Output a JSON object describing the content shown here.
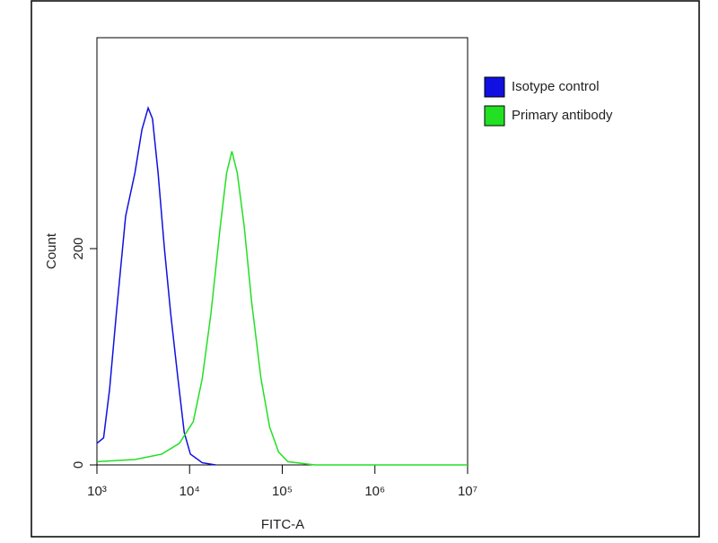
{
  "chart_data": {
    "type": "line",
    "x_label": "FITC-A",
    "y_label": "Count",
    "xlog": true,
    "xlim": [
      1000,
      10000000
    ],
    "xticks": [
      {
        "value": 1000,
        "label": "10³"
      },
      {
        "value": 10000,
        "label": "10⁴"
      },
      {
        "value": 100000,
        "label": "10⁵"
      },
      {
        "value": 1000000,
        "label": "10⁶"
      },
      {
        "value": 10000000,
        "label": "10⁷"
      }
    ],
    "ylim": [
      0,
      395
    ],
    "yticks": [
      0,
      200
    ],
    "legend": "right",
    "series": [
      {
        "name": "Isotype control",
        "color": "#1010e0",
        "x": [
          1000,
          1180,
          1370,
          1620,
          2040,
          2570,
          3060,
          3570,
          3980,
          4570,
          5350,
          6250,
          7480,
          8750,
          10200,
          13700,
          19100
        ],
        "values": [
          20,
          25,
          70,
          140,
          230,
          270,
          310,
          330,
          320,
          270,
          200,
          140,
          80,
          30,
          10,
          2,
          0
        ]
      },
      {
        "name": "Primary antibody",
        "color": "#22e022",
        "x": [
          1000,
          2570,
          5010,
          7760,
          10960,
          13700,
          17000,
          21400,
          25100,
          28600,
          32700,
          38900,
          46800,
          58900,
          73100,
          91200,
          115000,
          224000,
          10000000
        ],
        "values": [
          3,
          5,
          10,
          20,
          40,
          80,
          140,
          220,
          270,
          290,
          270,
          220,
          150,
          80,
          35,
          12,
          3,
          0,
          0
        ]
      }
    ]
  }
}
